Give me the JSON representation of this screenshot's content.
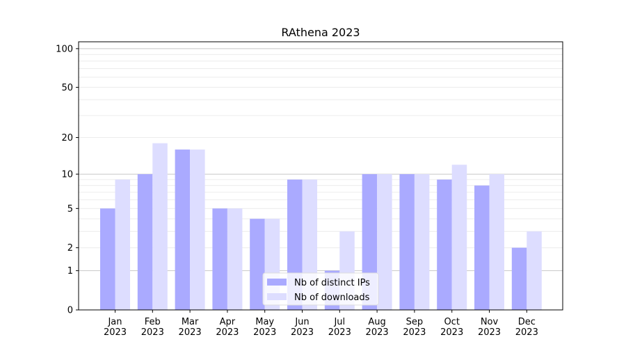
{
  "chart_data": {
    "type": "bar",
    "title": "RAthena 2023",
    "xlabel": "",
    "ylabel": "",
    "yscale": "symlog (log10(1+y))",
    "ylim": [
      0,
      113
    ],
    "yticks": [
      0,
      1,
      2,
      5,
      10,
      20,
      50,
      100
    ],
    "grid": true,
    "legend_position": "bottom-center",
    "categories": [
      "Jan\n2023",
      "Feb\n2023",
      "Mar\n2023",
      "Apr\n2023",
      "May\n2023",
      "Jun\n2023",
      "Jul\n2023",
      "Aug\n2023",
      "Sep\n2023",
      "Oct\n2023",
      "Nov\n2023",
      "Dec\n2023"
    ],
    "series": [
      {
        "name": "Nb of distinct IPs",
        "color": "#aaaaff",
        "values": [
          5,
          10,
          16,
          5,
          4,
          9,
          1,
          10,
          10,
          9,
          8,
          2
        ]
      },
      {
        "name": "Nb of downloads",
        "color": "#ddddff",
        "values": [
          9,
          18,
          16,
          5,
          4,
          9,
          3,
          10,
          10,
          12,
          10,
          3
        ]
      }
    ]
  }
}
